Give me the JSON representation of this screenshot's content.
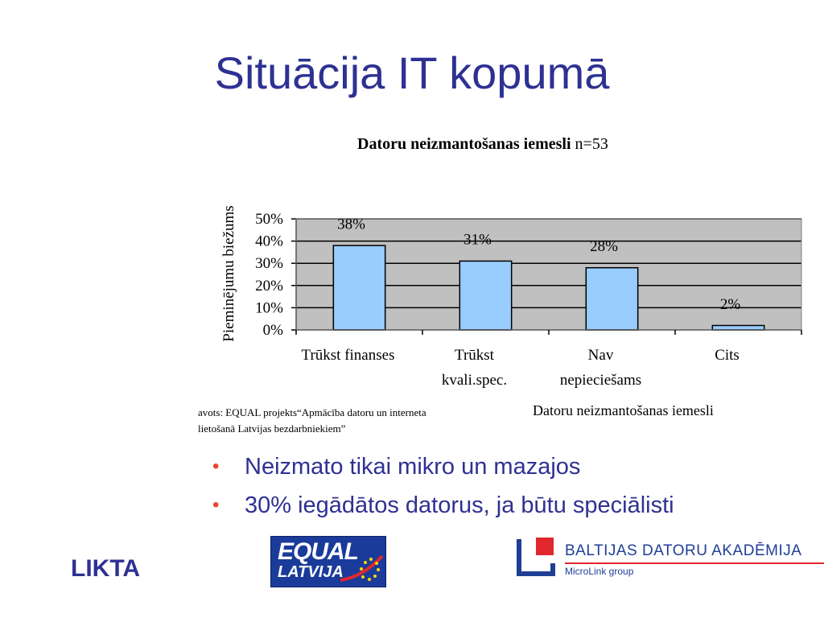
{
  "slide": {
    "title": "Situācija IT kopumā",
    "bullets": [
      "Neizmato tikai mikro un mazajos",
      "30% iegādātos datorus, ja būtu speciālisti"
    ],
    "source_line1": "avots: EQUAL projekts“Apmācība datoru un interneta",
    "source_line2": "lietošanā Latvijas bezdarbniekiem”",
    "footer_left": "LIKTA",
    "logos": {
      "equal": {
        "line1": "EQUAL",
        "line2": "LATVIJA"
      },
      "bda": {
        "name": "BALTIJAS DATORU AKADĒMIJA",
        "sub": "MicroLink group"
      }
    }
  },
  "chart_data": {
    "type": "bar",
    "title": "Datoru neizmantošanas iemesli",
    "title_suffix": "n=53",
    "categories": [
      [
        "Trūkst finanses"
      ],
      [
        "Trūkst",
        "kvali.spec."
      ],
      [
        "Nav",
        "nepieciešams"
      ],
      [
        "Cits"
      ]
    ],
    "values": [
      38,
      31,
      28,
      2
    ],
    "data_labels": [
      "38%",
      "31%",
      "28%",
      "2%"
    ],
    "ylabel": "Pieminējumu biežums",
    "xlabel": "Datoru neizmantošanas iemesli",
    "ylim": [
      0,
      50
    ],
    "yticks": [
      "0%",
      "10%",
      "20%",
      "30%",
      "40%",
      "50%"
    ],
    "grid": true,
    "legend": "none",
    "colors": {
      "bar": "#99ccff",
      "plot_bg": "#c0c0c0",
      "title_text": "#2e3192",
      "bullet": "#e8462d"
    }
  }
}
